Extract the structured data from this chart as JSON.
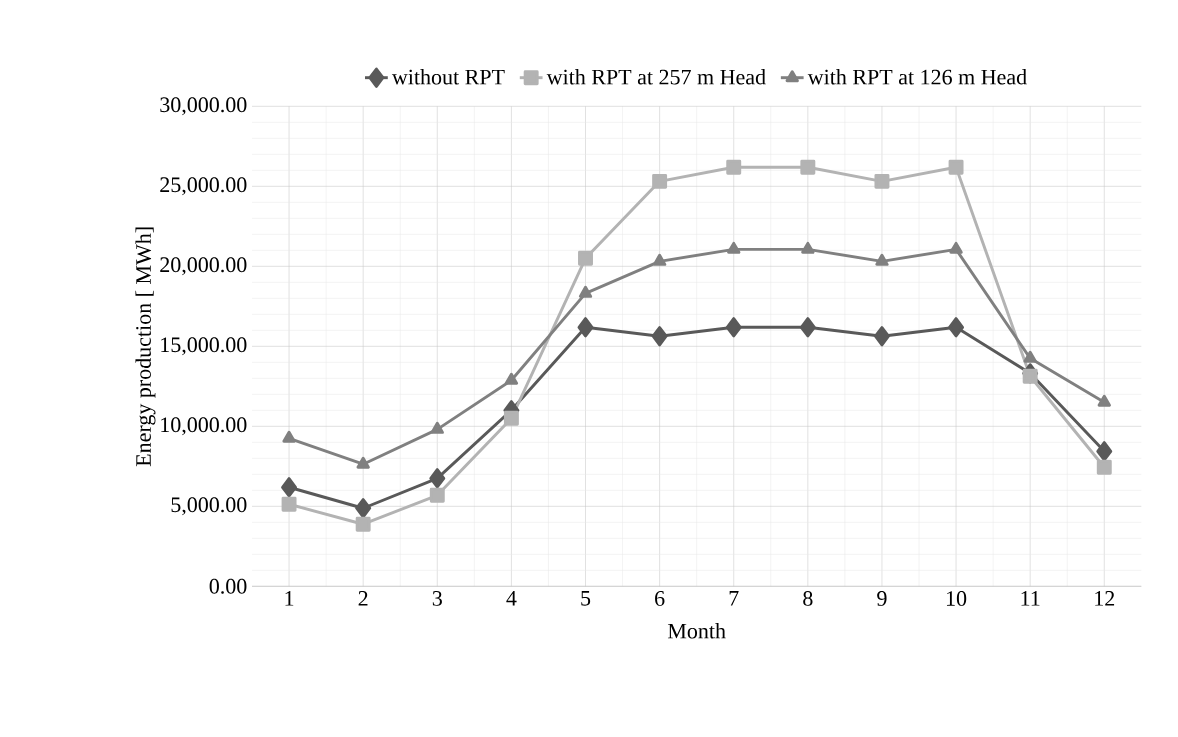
{
  "chart_data": {
    "type": "line",
    "xlabel": "Month",
    "ylabel": "Energy production [ MWh]",
    "categories": [
      "1",
      "2",
      "3",
      "4",
      "5",
      "6",
      "7",
      "8",
      "9",
      "10",
      "11",
      "12"
    ],
    "series": [
      {
        "name": "without RPT",
        "color": "#595959",
        "marker": "diamond",
        "values": [
          6190,
          4880,
          6750,
          11000,
          16190,
          15630,
          16190,
          16190,
          15630,
          16190,
          13310,
          8440
        ]
      },
      {
        "name": "with RPT at 257 m Head",
        "color": "#b3b3b3",
        "marker": "square",
        "values": [
          5130,
          3880,
          5690,
          10500,
          20500,
          25310,
          26190,
          26190,
          25310,
          26190,
          13130,
          7440
        ]
      },
      {
        "name": "with RPT at 126 m Head",
        "color": "#808080",
        "marker": "triangle",
        "values": [
          9250,
          7630,
          9810,
          12880,
          18310,
          20310,
          21060,
          21060,
          20310,
          21060,
          14250,
          11500
        ]
      }
    ],
    "ylim": [
      0,
      30000
    ],
    "yticks": [
      {
        "value": 0,
        "label": "0.00"
      },
      {
        "value": 5000,
        "label": "5,000.00"
      },
      {
        "value": 10000,
        "label": "10,000.00"
      },
      {
        "value": 15000,
        "label": "15,000.00"
      },
      {
        "value": 20000,
        "label": "20,000.00"
      },
      {
        "value": 25000,
        "label": "25,000.00"
      },
      {
        "value": 30000,
        "label": "30,000.00"
      }
    ],
    "grid": true,
    "legend": "top",
    "line_style": "solid"
  }
}
